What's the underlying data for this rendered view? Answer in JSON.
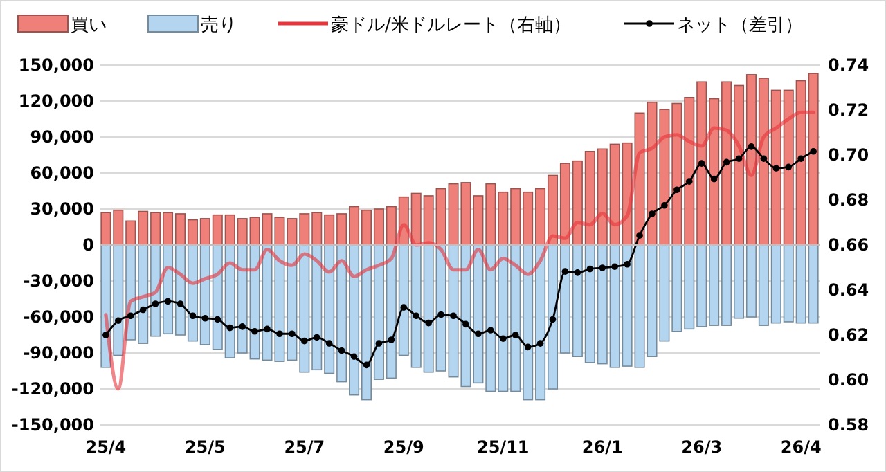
{
  "chart_data": {
    "type": "bar",
    "stacked": true,
    "legend": "top",
    "grid": "y",
    "categories": [
      "25/4",
      null,
      null,
      null,
      null,
      null,
      null,
      null,
      "25/5",
      null,
      null,
      null,
      null,
      null,
      null,
      null,
      "25/7",
      null,
      null,
      null,
      null,
      null,
      null,
      null,
      "25/9",
      null,
      null,
      null,
      null,
      null,
      null,
      null,
      "25/11",
      null,
      null,
      null,
      null,
      null,
      null,
      null,
      "26/1",
      null,
      null,
      null,
      null,
      null,
      null,
      null,
      "26/3",
      null,
      null,
      null,
      null,
      null,
      null,
      null,
      "26/4",
      null
    ],
    "ylim": [
      -150000,
      150000
    ],
    "yticks": [
      {
        "value": -150000,
        "label": "-150,000"
      },
      {
        "value": -120000,
        "label": "-120,000"
      },
      {
        "value": -90000,
        "label": "-90,000"
      },
      {
        "value": -60000,
        "label": "-60,000"
      },
      {
        "value": -30000,
        "label": "-30,000"
      },
      0,
      {
        "value": 30000,
        "label": "30,000"
      },
      {
        "value": 60000,
        "label": "60,000"
      },
      {
        "value": 90000,
        "label": "90,000"
      },
      {
        "value": 120000,
        "label": "120,000"
      },
      {
        "value": 150000,
        "label": "150,000"
      }
    ],
    "y2lim": [
      0.58,
      0.74
    ],
    "y2ticks": [
      0.58,
      {
        "value": 0.6,
        "label": "0.60"
      },
      0.62,
      0.64,
      0.66,
      0.68,
      {
        "value": 0.7,
        "label": "0.70"
      },
      0.72,
      0.74
    ],
    "series": [
      {
        "name": "買い",
        "color": "#ee8079",
        "values": [
          27000,
          29000,
          20000,
          28000,
          27000,
          27000,
          26000,
          21000,
          22000,
          25000,
          25000,
          22000,
          23000,
          26000,
          23000,
          22000,
          26000,
          27000,
          25000,
          26000,
          32000,
          29000,
          30000,
          32000,
          40000,
          43000,
          41000,
          47000,
          51000,
          52000,
          41000,
          51000,
          44000,
          47000,
          44000,
          47000,
          58000,
          68000,
          70000,
          78000,
          80000,
          84000,
          85000,
          110000,
          119000,
          113000,
          118000,
          123000,
          136000,
          122000,
          136000,
          133000,
          142000,
          139000,
          129000,
          129000,
          137000,
          143000
        ]
      },
      {
        "name": "売り",
        "color": "#b4d5f0",
        "values": [
          -102000,
          -92000,
          -79000,
          -82000,
          -76000,
          -74000,
          -75000,
          -80000,
          -83000,
          -87000,
          -94000,
          -90000,
          -95000,
          -96000,
          -97000,
          -96000,
          -106000,
          -104000,
          -107000,
          -114000,
          -125000,
          -129000,
          -112000,
          -111000,
          -92000,
          -102000,
          -106000,
          -105000,
          -110000,
          -118000,
          -115000,
          -122000,
          -122000,
          -122000,
          -129000,
          -129000,
          -120000,
          -90000,
          -93000,
          -98000,
          -99000,
          -102000,
          -101000,
          -102000,
          -93000,
          -80000,
          -72000,
          -70000,
          -68000,
          -67000,
          -67000,
          -61000,
          -60000,
          -67000,
          -65000,
          -64000,
          -65000,
          -65000
        ]
      },
      {
        "name": "豪ドル/米ドルレート（右軸）",
        "type": "line",
        "axis": "y2",
        "color": "#e8343a",
        "marker": "none",
        "values": [
          0.629,
          0.596,
          0.635,
          0.637,
          0.639,
          0.65,
          0.647,
          0.643,
          0.645,
          0.647,
          0.652,
          0.649,
          0.649,
          0.658,
          0.653,
          0.651,
          0.656,
          0.653,
          0.648,
          0.653,
          0.646,
          0.649,
          0.651,
          0.654,
          0.669,
          0.66,
          0.661,
          0.658,
          0.649,
          0.649,
          0.658,
          0.649,
          0.654,
          0.651,
          0.647,
          0.653,
          0.664,
          0.663,
          0.67,
          0.669,
          0.674,
          0.669,
          0.673,
          0.701,
          0.703,
          0.708,
          0.709,
          0.706,
          0.704,
          0.712,
          0.711,
          0.704,
          0.691,
          0.708,
          0.712,
          0.716,
          0.719,
          0.719
        ]
      },
      {
        "name": "ネット（差引）",
        "type": "line",
        "color": "#000000",
        "marker": "circle",
        "values": [
          -75000,
          -63000,
          -59000,
          -54000,
          -49000,
          -47000,
          -49000,
          -59000,
          -61000,
          -62000,
          -69000,
          -68000,
          -72000,
          -70000,
          -74000,
          -74000,
          -80000,
          -77000,
          -82000,
          -88000,
          -93000,
          -100000,
          -82000,
          -79000,
          -52000,
          -59000,
          -65000,
          -58000,
          -59000,
          -66000,
          -74000,
          -71000,
          -78000,
          -75000,
          -85000,
          -82000,
          -62000,
          -22000,
          -23000,
          -20000,
          -19000,
          -18000,
          -16000,
          8000,
          26000,
          33000,
          46000,
          53000,
          68000,
          55000,
          69000,
          72000,
          82000,
          72000,
          64000,
          65000,
          72000,
          78000
        ]
      }
    ]
  }
}
